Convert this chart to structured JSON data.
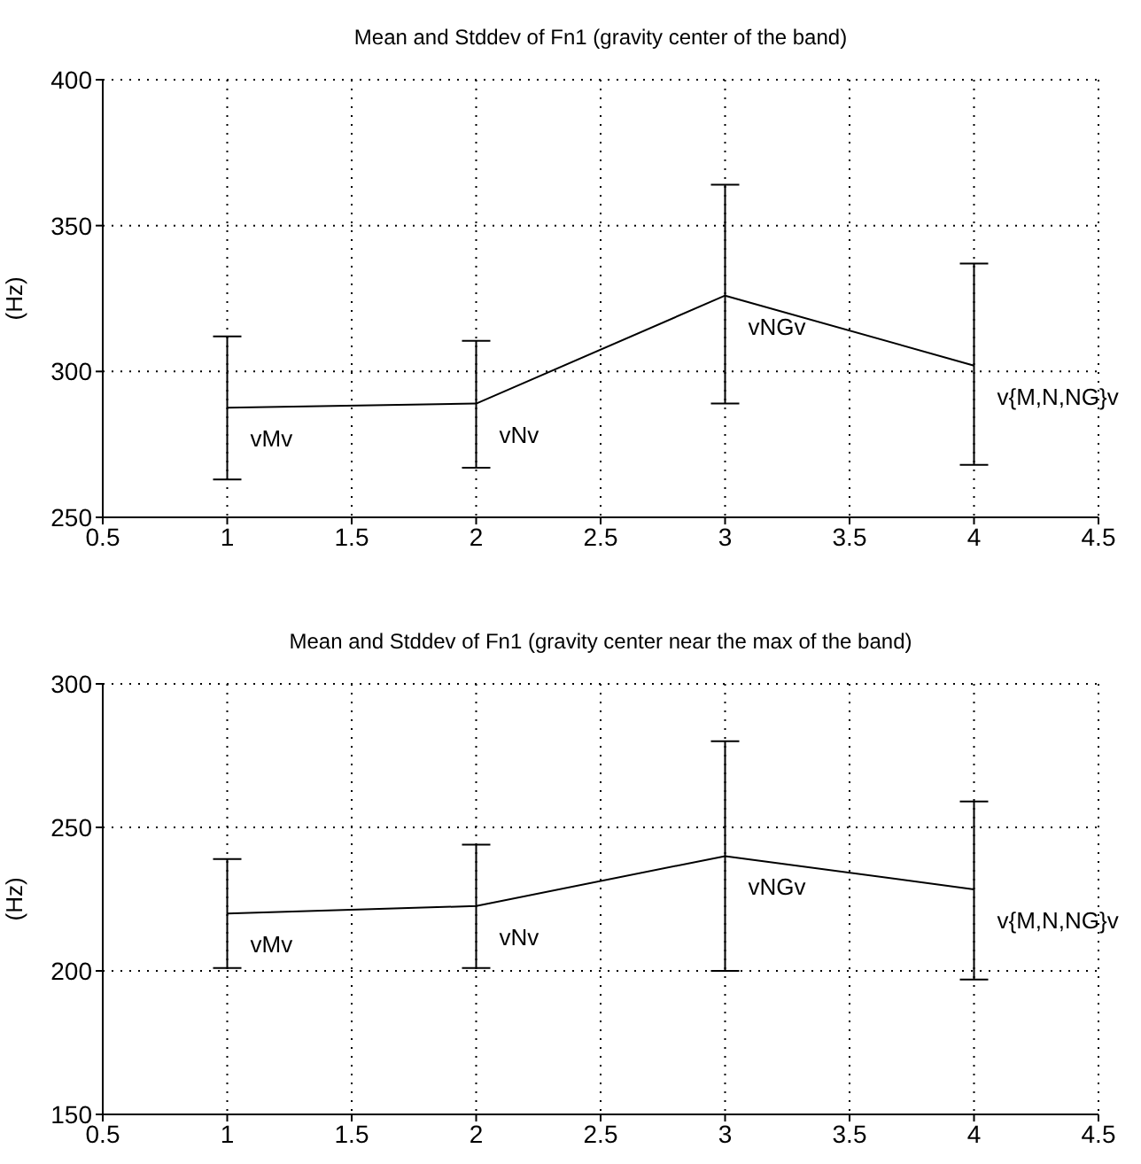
{
  "chart_data": [
    {
      "type": "line",
      "title": "Mean and Stddev of Fn1 (gravity center of the band)",
      "ylabel": "(Hz)",
      "x": [
        1,
        2,
        3,
        4
      ],
      "series": [
        {
          "color": "#000000",
          "values": [
            287.6,
            289,
            326,
            302
          ],
          "errors": [
            [
              263,
              312
            ],
            [
              267,
              310.5
            ],
            [
              289,
              364
            ],
            [
              268,
              337
            ]
          ]
        }
      ],
      "xlim": [
        0.5,
        4.5
      ],
      "xticks": [
        0.5,
        1,
        1.5,
        2,
        2.5,
        3,
        3.5,
        4,
        4.5
      ],
      "ylim": [
        250,
        400
      ],
      "yticks": [
        250,
        300,
        350,
        400
      ],
      "grid": true,
      "marker": "none",
      "line_style": "solid",
      "annotations": [
        {
          "text": "vMv",
          "x": 1,
          "y": 287.6
        },
        {
          "text": "vNv",
          "x": 2,
          "y": 289
        },
        {
          "text": "vNGv",
          "x": 3,
          "y": 326
        },
        {
          "text": "v{M,N,NG}v",
          "x": 4,
          "y": 302
        }
      ]
    },
    {
      "type": "line",
      "title": "Mean and Stddev of Fn1 (gravity center near the max of the band)",
      "ylabel": "(Hz)",
      "x": [
        1,
        2,
        3,
        4
      ],
      "series": [
        {
          "color": "#000000",
          "values": [
            220,
            222.6,
            240,
            228.4
          ],
          "errors": [
            [
              201,
              239
            ],
            [
              201,
              244
            ],
            [
              200,
              280
            ],
            [
              197,
              259
            ]
          ]
        }
      ],
      "xlim": [
        0.5,
        4.5
      ],
      "xticks": [
        0.5,
        1,
        1.5,
        2,
        2.5,
        3,
        3.5,
        4,
        4.5
      ],
      "ylim": [
        150,
        300
      ],
      "yticks": [
        150,
        200,
        250,
        300
      ],
      "grid": true,
      "marker": "none",
      "line_style": "solid",
      "annotations": [
        {
          "text": "vMv",
          "x": 1,
          "y": 220
        },
        {
          "text": "vNv",
          "x": 2,
          "y": 222.6
        },
        {
          "text": "vNGv",
          "x": 3,
          "y": 240
        },
        {
          "text": "v{M,N,NG}v",
          "x": 4,
          "y": 228.4
        }
      ]
    }
  ]
}
